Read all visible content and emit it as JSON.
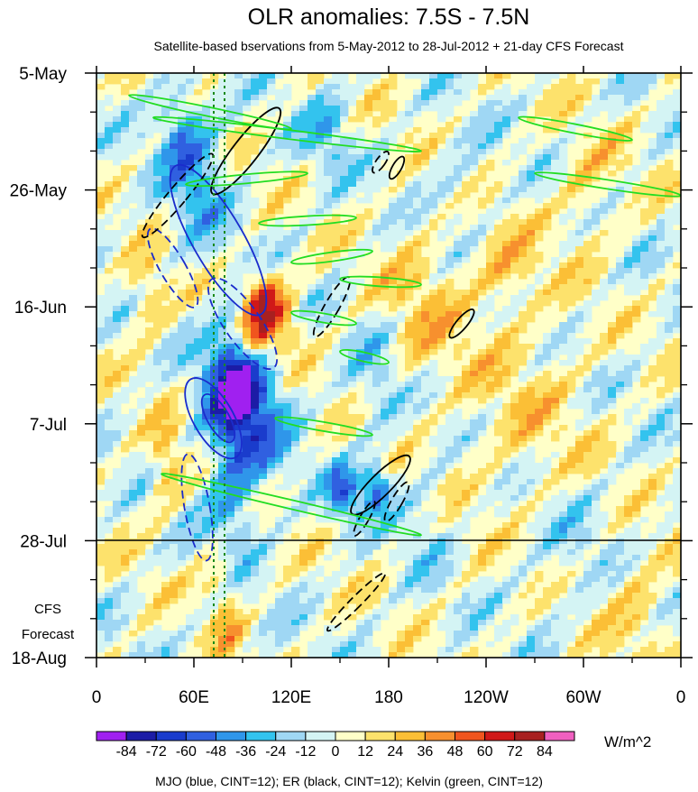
{
  "chart_data": {
    "type": "heatmap",
    "title": "OLR anomalies: 7.5S - 7.5N",
    "subtitle": "Satellite-based bservations from 5-May-2012 to 28-Jul-2012 + 21-day CFS Forecast",
    "x_ticks": [
      {
        "lon": 0,
        "label": "0"
      },
      {
        "lon": 60,
        "label": "60E"
      },
      {
        "lon": 120,
        "label": "120E"
      },
      {
        "lon": 180,
        "label": "180"
      },
      {
        "lon": 240,
        "label": "120W"
      },
      {
        "lon": 300,
        "label": "60W"
      },
      {
        "lon": 360,
        "label": "0"
      }
    ],
    "x_range": [
      0,
      360
    ],
    "y_ticks": [
      {
        "day": 0,
        "label": "5-May"
      },
      {
        "day": 21,
        "label": "26-May"
      },
      {
        "day": 42,
        "label": "16-Jun"
      },
      {
        "day": 63,
        "label": "7-Jul"
      },
      {
        "day": 84,
        "label": "28-Jul"
      },
      {
        "day": 105,
        "label": "18-Aug"
      }
    ],
    "y_range_days": [
      0,
      105
    ],
    "forecast_start_day": 84,
    "forecast_label": [
      "CFS",
      "Forecast"
    ],
    "colorbar": {
      "levels": [
        "-84",
        "-72",
        "-60",
        "-48",
        "-36",
        "-24",
        "-12",
        "0",
        "12",
        "24",
        "36",
        "48",
        "60",
        "72",
        "84"
      ],
      "colors": [
        "#a020f0",
        "#1c1ca6",
        "#1a3ccc",
        "#3060e0",
        "#2f96ea",
        "#33c3ee",
        "#9fd7f4",
        "#d4f4f4",
        "#ffffc8",
        "#fde26c",
        "#fbbf36",
        "#f7902e",
        "#f0551e",
        "#d01818",
        "#a82020",
        "#f060c0"
      ],
      "units": "W/m^2"
    },
    "footer": "MJO (blue, CINT=12); ER (black, CINT=12); Kelvin (green, CINT=12)",
    "contour_colors": {
      "MJO": "#1a2ccc",
      "ER": "#000000",
      "Kelvin": "#22dd22"
    }
  }
}
